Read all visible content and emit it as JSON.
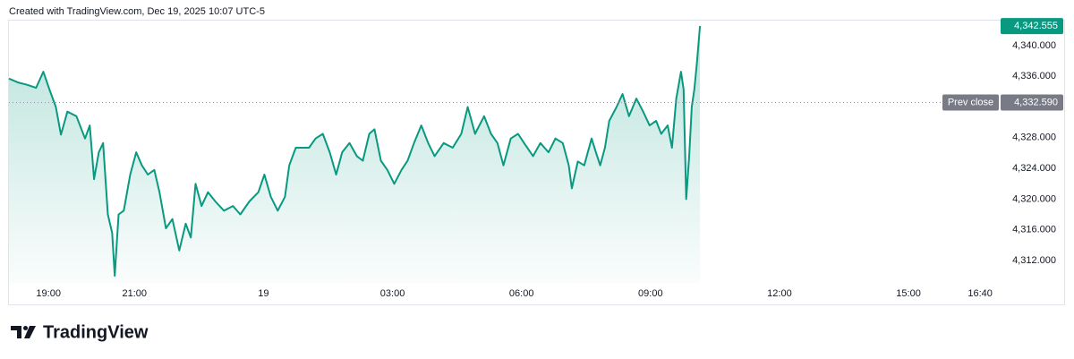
{
  "header": "Created with TradingView.com, Dec 19, 2025 10:07 UTC-5",
  "brand": "TradingView",
  "chart_data": {
    "type": "area",
    "color": "#089981",
    "x": [
      18.08,
      18.29,
      18.5,
      18.71,
      18.88,
      19.02,
      19.17,
      19.29,
      19.44,
      19.65,
      19.85,
      19.96,
      20.06,
      20.17,
      20.27,
      20.38,
      20.48,
      20.54,
      20.63,
      20.75,
      20.9,
      21.04,
      21.17,
      21.31,
      21.46,
      21.58,
      21.73,
      21.88,
      22.04,
      22.19,
      22.31,
      22.42,
      22.56,
      22.71,
      22.88,
      23.08,
      23.29,
      23.46,
      23.67,
      23.88,
      24.02,
      24.17,
      24.33,
      24.5,
      24.6,
      24.75,
      24.92,
      25.06,
      25.21,
      25.38,
      25.54,
      25.69,
      25.83,
      26,
      26.17,
      26.31,
      26.46,
      26.58,
      26.73,
      26.88,
      27.04,
      27.21,
      27.35,
      27.5,
      27.67,
      27.83,
      27.98,
      28.19,
      28.4,
      28.6,
      28.75,
      28.92,
      29.13,
      29.29,
      29.44,
      29.58,
      29.75,
      29.92,
      30.06,
      30.27,
      30.44,
      30.63,
      30.79,
      30.96,
      31.1,
      31.17,
      31.31,
      31.46,
      31.63,
      31.73,
      31.83,
      31.94,
      32.04,
      32.21,
      32.35,
      32.5,
      32.67,
      32.83,
      32.98,
      33.13,
      33.25,
      33.4,
      33.5,
      33.6,
      33.71,
      33.77,
      33.83,
      33.9,
      33.96,
      34.02,
      34.08,
      34.15
    ],
    "values": [
      4335.7,
      4335.2,
      4334.9,
      4334.5,
      4336.6,
      4334.3,
      4332.0,
      4328.4,
      4331.4,
      4330.8,
      4327.9,
      4329.6,
      4322.6,
      4326.1,
      4327.3,
      4318.0,
      4315.6,
      4310.0,
      4318.0,
      4318.5,
      4323.2,
      4326.1,
      4324.4,
      4323.2,
      4323.8,
      4320.9,
      4316.2,
      4317.4,
      4313.3,
      4316.8,
      4315.0,
      4322.0,
      4319.1,
      4320.9,
      4319.7,
      4318.5,
      4319.1,
      4318.0,
      4319.7,
      4320.9,
      4323.2,
      4320.3,
      4318.5,
      4320.3,
      4324.4,
      4326.7,
      4326.7,
      4326.7,
      4327.9,
      4328.5,
      4326.1,
      4323.2,
      4326.1,
      4327.3,
      4325.6,
      4325.0,
      4328.5,
      4329.1,
      4325.0,
      4323.8,
      4322.0,
      4323.8,
      4325.0,
      4327.3,
      4329.6,
      4327.3,
      4325.6,
      4327.3,
      4326.7,
      4328.5,
      4332.0,
      4328.5,
      4330.8,
      4328.5,
      4327.3,
      4324.4,
      4327.9,
      4328.5,
      4327.3,
      4325.6,
      4327.3,
      4326.1,
      4327.9,
      4327.3,
      4324.4,
      4321.4,
      4324.9,
      4324.4,
      4327.9,
      4326.1,
      4324.4,
      4326.7,
      4330.2,
      4332.0,
      4333.7,
      4330.8,
      4333.1,
      4331.4,
      4329.6,
      4330.2,
      4328.5,
      4329.6,
      4326.7,
      4333.1,
      4336.6,
      4334.3,
      4320.0,
      4325.5,
      4332.0,
      4334.3,
      4337.8,
      4342.555
    ],
    "xlim": [
      18.08,
      41.08
    ],
    "xticks": [
      {
        "value": 19,
        "label": "19:00"
      },
      {
        "value": 21,
        "label": "21:00"
      },
      {
        "value": 24,
        "label": "19"
      },
      {
        "value": 27,
        "label": "03:00"
      },
      {
        "value": 30,
        "label": "06:00"
      },
      {
        "value": 33,
        "label": "09:00"
      },
      {
        "value": 36,
        "label": "12:00"
      },
      {
        "value": 39,
        "label": "15:00"
      },
      {
        "value": 40.667,
        "label": "16:40"
      }
    ],
    "ylim": [
      4309.08,
      4343.38
    ],
    "yticks": [
      {
        "value": 4340,
        "label": "4,340.000"
      },
      {
        "value": 4336,
        "label": "4,336.000"
      },
      {
        "value": 4328,
        "label": "4,328.000"
      },
      {
        "value": 4324,
        "label": "4,324.000"
      },
      {
        "value": 4320,
        "label": "4,320.000"
      },
      {
        "value": 4316,
        "label": "4,316.000"
      },
      {
        "value": 4312,
        "label": "4,312.000"
      }
    ],
    "last_price": {
      "value": 4342.555,
      "label": "4,342.555"
    },
    "prev_close": {
      "name": "Prev close",
      "value": 4332.59,
      "label": "4,332.590"
    }
  }
}
